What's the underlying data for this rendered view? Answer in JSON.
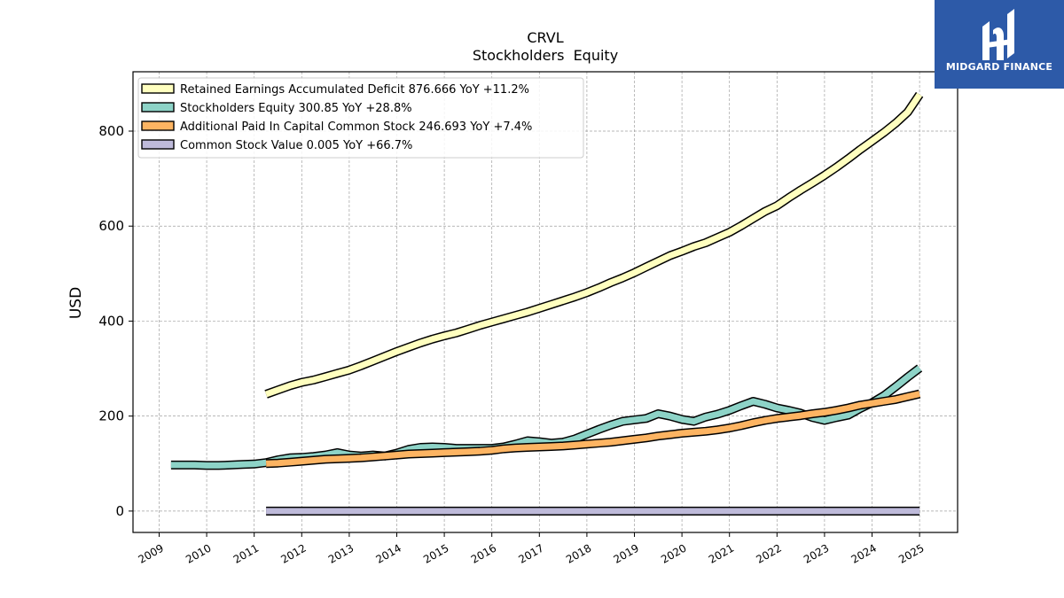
{
  "brand": {
    "name": "MIDGARD FINANCE",
    "bg_color": "#2d5aa8"
  },
  "chart_data": {
    "type": "line",
    "title": "CRVL",
    "subtitle": "Stockholders  Equity",
    "ylabel": "USD",
    "xlabel": "",
    "xlim": [
      2008.45,
      2025.8
    ],
    "ylim": [
      -45,
      925
    ],
    "yticks": [
      0,
      200,
      400,
      600,
      800
    ],
    "xticks": [
      "2009",
      "2010",
      "2011",
      "2012",
      "2013",
      "2014",
      "2015",
      "2016",
      "2017",
      "2018",
      "2019",
      "2020",
      "2021",
      "2022",
      "2023",
      "2024",
      "2025"
    ],
    "grid": true,
    "legend_position": "top-left",
    "series": [
      {
        "name": "Retained Earnings Accumulated Deficit  876.666 YoY +11.2%",
        "color": "#ffffbf",
        "x": [
          2011.25,
          2011.5,
          2011.75,
          2012.0,
          2012.25,
          2012.5,
          2012.75,
          2013.0,
          2013.25,
          2013.5,
          2013.75,
          2014.0,
          2014.25,
          2014.5,
          2014.75,
          2015.0,
          2015.25,
          2015.5,
          2015.75,
          2016.0,
          2016.25,
          2016.5,
          2016.75,
          2017.0,
          2017.25,
          2017.5,
          2017.75,
          2018.0,
          2018.25,
          2018.5,
          2018.75,
          2019.0,
          2019.25,
          2019.5,
          2019.75,
          2020.0,
          2020.25,
          2020.5,
          2020.75,
          2021.0,
          2021.25,
          2021.5,
          2021.75,
          2022.0,
          2022.25,
          2022.5,
          2022.75,
          2023.0,
          2023.25,
          2023.5,
          2023.75,
          2024.0,
          2024.25,
          2024.5,
          2024.75,
          2025.0
        ],
        "y": [
          246,
          255,
          264,
          271,
          276,
          283,
          290,
          297,
          306,
          316,
          326,
          336,
          345,
          354,
          362,
          369,
          375,
          383,
          391,
          398,
          405,
          412,
          419,
          427,
          435,
          443,
          451,
          460,
          470,
          481,
          491,
          502,
          514,
          526,
          538,
          547,
          557,
          565,
          576,
          587,
          601,
          616,
          631,
          643,
          660,
          676,
          691,
          707,
          724,
          742,
          761,
          779,
          797,
          817,
          840,
          877
        ]
      },
      {
        "name": "Stockholders Equity  300.85 YoY +28.8%",
        "color": "#8dd3c7",
        "x": [
          2009.25,
          2009.5,
          2009.75,
          2010.0,
          2010.25,
          2010.5,
          2010.75,
          2011.0,
          2011.25,
          2011.5,
          2011.75,
          2012.0,
          2012.25,
          2012.5,
          2012.75,
          2013.0,
          2013.25,
          2013.5,
          2013.75,
          2014.0,
          2014.25,
          2014.5,
          2014.75,
          2015.0,
          2015.25,
          2015.5,
          2015.75,
          2016.0,
          2016.25,
          2016.5,
          2016.75,
          2017.0,
          2017.25,
          2017.5,
          2017.75,
          2018.0,
          2018.25,
          2018.5,
          2018.75,
          2019.0,
          2019.25,
          2019.5,
          2019.75,
          2020.0,
          2020.25,
          2020.5,
          2020.75,
          2021.0,
          2021.25,
          2021.5,
          2021.75,
          2022.0,
          2022.25,
          2022.5,
          2022.75,
          2023.0,
          2023.25,
          2023.5,
          2023.75,
          2024.0,
          2024.25,
          2024.5,
          2024.75,
          2025.0
        ],
        "y": [
          97,
          97,
          97,
          96,
          96,
          97,
          98,
          99,
          102,
          108,
          112,
          113,
          115,
          118,
          123,
          118,
          116,
          118,
          116,
          122,
          130,
          134,
          135,
          134,
          132,
          132,
          132,
          132,
          135,
          141,
          148,
          146,
          143,
          145,
          152,
          162,
          172,
          181,
          189,
          192,
          195,
          205,
          200,
          193,
          189,
          198,
          204,
          212,
          222,
          231,
          225,
          217,
          212,
          206,
          197,
          191,
          197,
          202,
          216,
          228,
          243,
          262,
          282,
          301
        ]
      },
      {
        "name": "Additional Paid In Capital Common Stock  246.693 YoY +7.4%",
        "color": "#fdb462",
        "x": [
          2011.25,
          2011.5,
          2011.75,
          2012.0,
          2012.25,
          2012.5,
          2012.75,
          2013.0,
          2013.25,
          2013.5,
          2013.75,
          2014.0,
          2014.25,
          2014.5,
          2014.75,
          2015.0,
          2015.25,
          2015.5,
          2015.75,
          2016.0,
          2016.25,
          2016.5,
          2016.75,
          2017.0,
          2017.25,
          2017.5,
          2017.75,
          2018.0,
          2018.25,
          2018.5,
          2018.75,
          2019.0,
          2019.25,
          2019.5,
          2019.75,
          2020.0,
          2020.25,
          2020.5,
          2020.75,
          2021.0,
          2021.25,
          2021.5,
          2021.75,
          2022.0,
          2022.25,
          2022.5,
          2022.75,
          2023.0,
          2023.25,
          2023.5,
          2023.75,
          2024.0,
          2024.25,
          2024.5,
          2024.75,
          2025.0
        ],
        "y": [
          100,
          101,
          103,
          105,
          107,
          109,
          110,
          111,
          112,
          114,
          116,
          118,
          120,
          121,
          122,
          123,
          124,
          125,
          126,
          128,
          131,
          133,
          134,
          135,
          136,
          137,
          139,
          141,
          143,
          145,
          148,
          151,
          154,
          158,
          161,
          164,
          166,
          168,
          171,
          175,
          180,
          186,
          191,
          195,
          198,
          201,
          205,
          208,
          212,
          217,
          223,
          227,
          231,
          235,
          241,
          246.7
        ]
      },
      {
        "name": "Common Stock Value  0.005 YoY +66.7%",
        "color": "#bebada",
        "x": [
          2011.25,
          2025.0
        ],
        "y": [
          0.003,
          0.005
        ]
      }
    ]
  }
}
